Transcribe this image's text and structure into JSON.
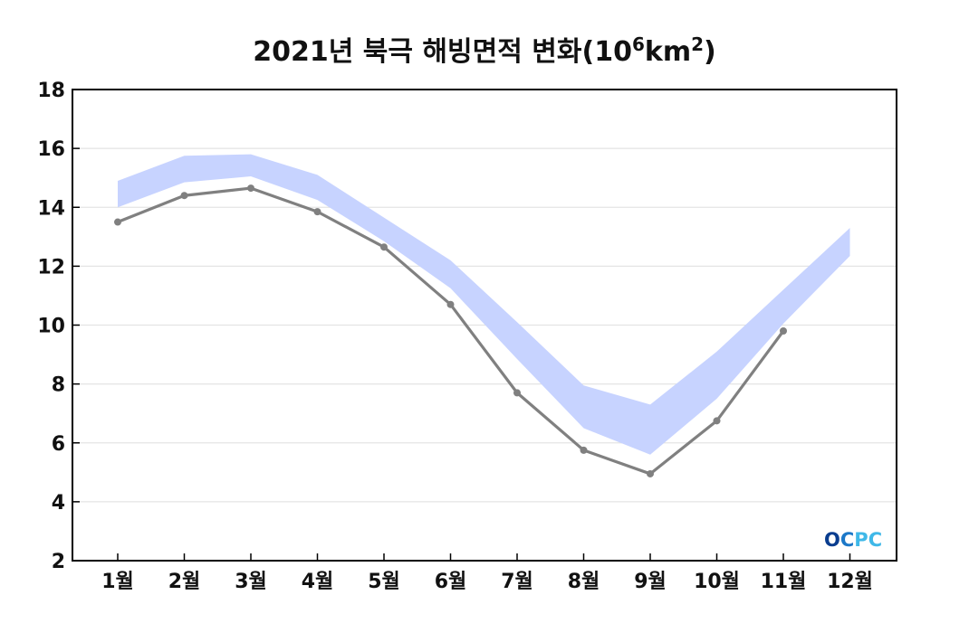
{
  "title": {
    "main": "2021년 북극 해빙면적 변화(10",
    "exp1": "6",
    "mid": "km",
    "exp2": "2",
    "end": ")"
  },
  "logo": {
    "text": "OCPC",
    "colors": [
      "#0a3d8f",
      "#1c78c8",
      "#3fb8e8"
    ]
  },
  "colors": {
    "band": "#c7d3ff",
    "line": "#808080",
    "axis": "#000000",
    "grid": "#e4e4e4"
  },
  "chart_data": {
    "type": "line",
    "title": "2021년 북극 해빙면적 변화(10⁶km²)",
    "xlabel": "",
    "ylabel": "",
    "categories": [
      "1월",
      "2월",
      "3월",
      "4월",
      "5월",
      "6월",
      "7월",
      "8월",
      "9월",
      "10월",
      "11월",
      "12월"
    ],
    "ylim": [
      2,
      18
    ],
    "yticks": [
      "2",
      "4",
      "6",
      "8",
      "10",
      "12",
      "14",
      "16",
      "18"
    ],
    "grid": "horizontal",
    "series": [
      {
        "values": [
          13.5,
          14.4,
          14.65,
          13.85,
          12.65,
          10.7,
          7.7,
          5.75,
          4.95,
          6.75,
          9.8,
          null
        ]
      }
    ],
    "band": {
      "upper": [
        14.9,
        15.75,
        15.8,
        15.1,
        13.65,
        12.2,
        10.1,
        7.95,
        7.3,
        9.1,
        11.2,
        13.3
      ],
      "lower": [
        14.0,
        14.85,
        15.05,
        14.25,
        12.85,
        11.25,
        8.85,
        6.5,
        5.6,
        7.5,
        10.05,
        12.35
      ]
    }
  }
}
